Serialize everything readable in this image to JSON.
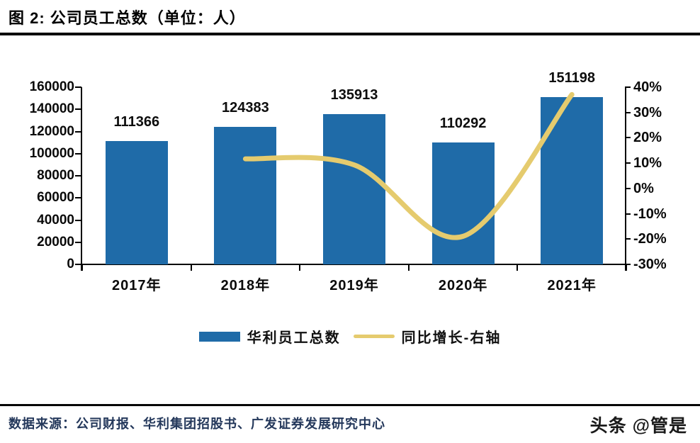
{
  "header": {
    "title": "图 2:  公司员工总数（单位：人）"
  },
  "footer": {
    "source": "数据来源：公司财报、华利集团招股书、广发证券发展研究中心",
    "watermark": "头条 @管是"
  },
  "colors": {
    "bar": "#1F6BA8",
    "line": "#E5CB6E",
    "axis": "#000000",
    "title_rule": "#050505",
    "source_text": "#24385B"
  },
  "chart_data": {
    "type": "bar+line",
    "categories": [
      "2017年",
      "2018年",
      "2019年",
      "2020年",
      "2021年"
    ],
    "series": [
      {
        "name": "华利员工总数",
        "type": "bar",
        "axis": "left",
        "color": "#1F6BA8",
        "values": [
          111366,
          124383,
          135913,
          110292,
          151198
        ],
        "data_labels": [
          "111366",
          "124383",
          "135913",
          "110292",
          "151198"
        ]
      },
      {
        "name": "同比增长-右轴",
        "type": "line",
        "axis": "right",
        "color": "#E5CB6E",
        "values_percent": [
          null,
          11.7,
          9.3,
          -18.9,
          37.1
        ]
      }
    ],
    "left_axis": {
      "min": 0,
      "max": 160000,
      "step": 20000,
      "ticks": [
        "0",
        "20000",
        "40000",
        "60000",
        "80000",
        "100000",
        "120000",
        "140000",
        "160000"
      ]
    },
    "right_axis": {
      "min": -30,
      "max": 40,
      "step": 10,
      "ticks": [
        "-30%",
        "-20%",
        "-10%",
        "0%",
        "10%",
        "20%",
        "30%",
        "40%"
      ]
    },
    "grid": "off",
    "legend_position": "bottom"
  }
}
